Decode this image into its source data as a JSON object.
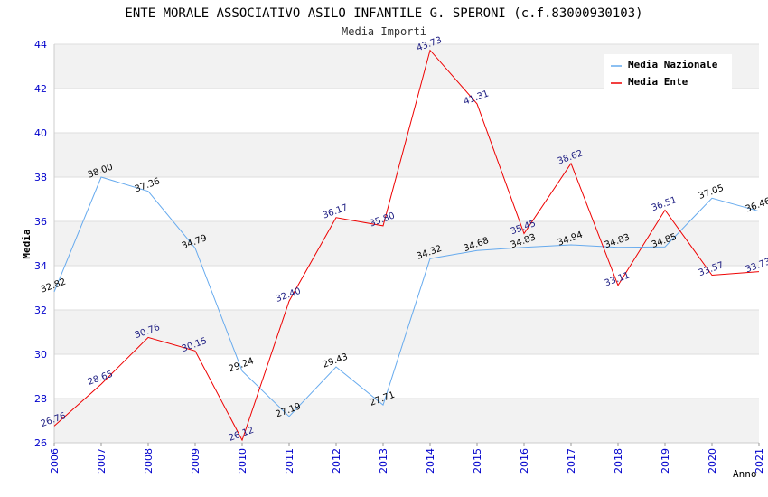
{
  "chart_data": {
    "type": "line",
    "title": "ENTE MORALE ASSOCIATIVO ASILO INFANTILE G. SPERONI (c.f.83000930103)",
    "subtitle": "Media Importi",
    "xlabel": "Anno",
    "ylabel": "Media",
    "ylim": [
      26,
      44
    ],
    "yticks": [
      "26",
      "28",
      "30",
      "32",
      "34",
      "36",
      "38",
      "40",
      "42",
      "44"
    ],
    "categories": [
      "2006",
      "2007",
      "2008",
      "2009",
      "2010",
      "2011",
      "2012",
      "2013",
      "2014",
      "2015",
      "2016",
      "2017",
      "2018",
      "2019",
      "2020",
      "2021"
    ],
    "legend_position": "top-right",
    "grid": true,
    "series": [
      {
        "name": "Media Nazionale",
        "color": "#66aaee",
        "values": [
          32.82,
          38.0,
          37.36,
          34.79,
          29.24,
          27.19,
          29.43,
          27.71,
          34.32,
          34.68,
          34.83,
          34.94,
          34.83,
          34.85,
          37.05,
          36.46
        ],
        "labels": [
          "32.82",
          "38.00",
          "37.36",
          "34.79",
          "29.24",
          "27.19",
          "29.43",
          "27.71",
          "34.32",
          "34.68",
          "34.83",
          "34.94",
          "34.83",
          "34.85",
          "37.05",
          "36.46"
        ]
      },
      {
        "name": "Media Ente",
        "color": "#ee0000",
        "values": [
          26.76,
          28.65,
          30.76,
          30.15,
          26.12,
          32.4,
          36.17,
          35.8,
          43.73,
          41.31,
          35.45,
          38.62,
          33.11,
          36.51,
          33.57,
          33.73
        ],
        "labels": [
          "26.76",
          "28.65",
          "30.76",
          "30.15",
          "26.12",
          "32.40",
          "36.17",
          "35.80",
          "43.73",
          "41.31",
          "35.45",
          "38.62",
          "33.11",
          "36.51",
          "33.57",
          "33.73"
        ]
      }
    ]
  }
}
